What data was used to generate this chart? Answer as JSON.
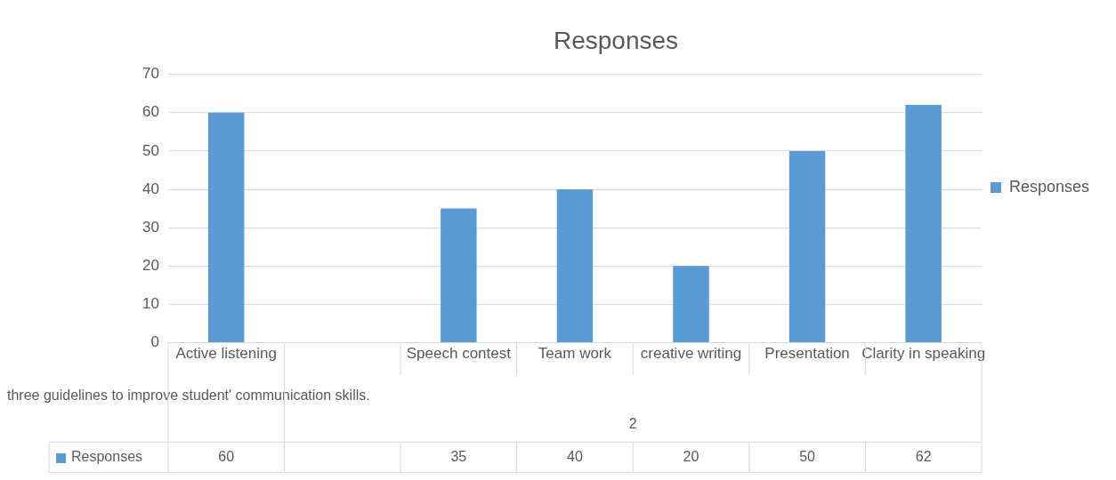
{
  "chart_data": {
    "type": "bar",
    "title": "Responses",
    "categories": [
      "Active listening",
      null,
      "Speech contest",
      "Team work",
      "creative writing",
      "Presentation",
      "Clarity in speaking"
    ],
    "series": [
      {
        "name": "Responses",
        "color": "#5b9bd5",
        "values": [
          60,
          null,
          35,
          40,
          20,
          50,
          62
        ]
      }
    ],
    "ylim": [
      0,
      70
    ],
    "yticks": [
      0,
      10,
      20,
      30,
      40,
      50,
      60,
      70
    ],
    "grid": "y",
    "legend": "right",
    "data_labels": true,
    "annotations": [
      "three guidelines to improve student' communication skills.",
      "2"
    ]
  }
}
